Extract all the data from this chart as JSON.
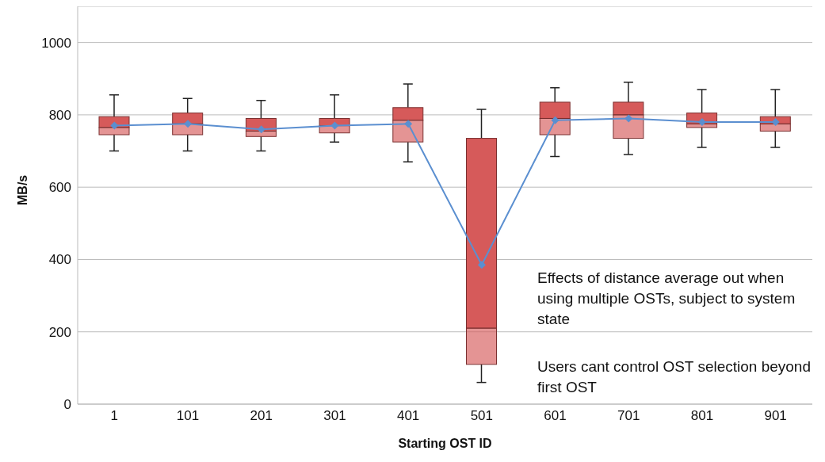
{
  "chart_data": {
    "type": "box",
    "xlabel": "Starting OST ID",
    "ylabel": "MB/s",
    "categories": [
      "1",
      "101",
      "201",
      "301",
      "401",
      "501",
      "601",
      "701",
      "801",
      "901"
    ],
    "series": [
      {
        "type": "box",
        "color": "#d65a5a",
        "boxes": [
          {
            "low": 700,
            "q1": 745,
            "median": 765,
            "q3": 795,
            "high": 855
          },
          {
            "low": 700,
            "q1": 745,
            "median": 775,
            "q3": 805,
            "high": 845
          },
          {
            "low": 700,
            "q1": 740,
            "median": 755,
            "q3": 790,
            "high": 840
          },
          {
            "low": 725,
            "q1": 750,
            "median": 770,
            "q3": 790,
            "high": 855
          },
          {
            "low": 670,
            "q1": 725,
            "median": 785,
            "q3": 820,
            "high": 885
          },
          {
            "low": 60,
            "q1": 110,
            "median": 210,
            "q3": 735,
            "high": 815
          },
          {
            "low": 685,
            "q1": 745,
            "median": 790,
            "q3": 835,
            "high": 875
          },
          {
            "low": 690,
            "q1": 735,
            "median": 800,
            "q3": 835,
            "high": 890
          },
          {
            "low": 710,
            "q1": 765,
            "median": 775,
            "q3": 805,
            "high": 870
          },
          {
            "low": 710,
            "q1": 755,
            "median": 775,
            "q3": 795,
            "high": 870
          }
        ]
      },
      {
        "type": "line",
        "color": "#5b8fd0",
        "marker": "diamond",
        "values": [
          770,
          775,
          760,
          770,
          775,
          385,
          785,
          790,
          780,
          780
        ]
      }
    ],
    "ylim": [
      0,
      1100
    ],
    "yticks": [
      0,
      200,
      400,
      600,
      800,
      1000
    ],
    "grid": "y",
    "legend": false,
    "annotations": [
      "Effects of distance average out when using multiple OSTs, subject to system state",
      "Users cant control OST selection beyond first OST"
    ]
  }
}
